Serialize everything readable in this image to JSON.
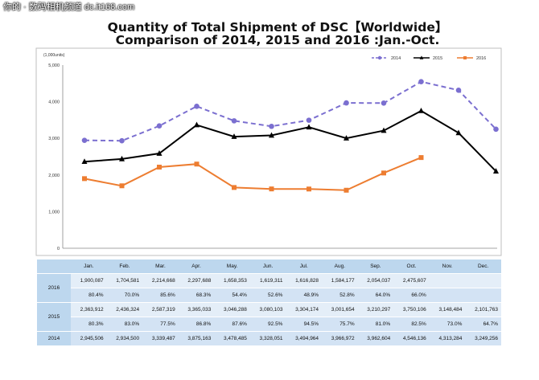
{
  "watermark": "你的 · 数码相机频道 dc.it168.com",
  "title_line1": "Quantity of Total Shipment of DSC【Worldwide】",
  "title_line2": "Comparison of 2014, 2015 and 2016 :Jan.-Oct.",
  "chart_data": {
    "type": "line",
    "ylabel": "(1,000units)",
    "ylim": [
      0,
      5000
    ],
    "yticks": [
      "0",
      "1,000",
      "2,000",
      "3,000",
      "4,000",
      "5,000"
    ],
    "categories": [
      "Jan.",
      "Feb.",
      "Mar.",
      "Apr.",
      "May.",
      "Jun.",
      "Jul.",
      "Aug.",
      "Sep.",
      "Oct.",
      "Nov.",
      "Dec."
    ],
    "legend_position": "top-right",
    "grid": false,
    "series": [
      {
        "name": "2014",
        "color": "#7b6fd0",
        "marker": "circle",
        "dash": "dashed",
        "values": [
          2945.506,
          2934.5,
          3339.487,
          3875.163,
          3478.485,
          3328.051,
          3494.964,
          3966.972,
          3962.604,
          4546.136,
          4313.284,
          3249.256
        ]
      },
      {
        "name": "2015",
        "color": "#000000",
        "marker": "triangle",
        "dash": "solid",
        "values": [
          2363.912,
          2436.324,
          2587.319,
          3365.033,
          3046.288,
          3080.103,
          3304.174,
          3001.654,
          3210.297,
          3750.106,
          3148.484,
          2101.763
        ]
      },
      {
        "name": "2016",
        "color": "#ed7d31",
        "marker": "square",
        "dash": "solid",
        "values": [
          1900.087,
          1704.581,
          2214.668,
          2297.688,
          1658.353,
          1619.311,
          1616.828,
          1584.177,
          2054.037,
          2475.607,
          null,
          null
        ]
      }
    ]
  },
  "table": {
    "header": [
      "",
      "Jan.",
      "Feb.",
      "Mar.",
      "Apr.",
      "May.",
      "Jun.",
      "Jul.",
      "Aug.",
      "Sep.",
      "Oct.",
      "Nov.",
      "Dec."
    ],
    "rows": [
      {
        "year": "2016",
        "values": [
          "1,900,087",
          "1,704,581",
          "2,214,668",
          "2,297,688",
          "1,658,353",
          "1,619,311",
          "1,616,828",
          "1,584,177",
          "2,054,037",
          "2,475,607",
          "",
          ""
        ],
        "ratios": [
          "80.4%",
          "70.0%",
          "85.6%",
          "68.3%",
          "54.4%",
          "52.6%",
          "48.9%",
          "52.8%",
          "64.0%",
          "66.0%",
          "",
          ""
        ]
      },
      {
        "year": "2015",
        "values": [
          "2,363,912",
          "2,436,324",
          "2,587,319",
          "3,365,033",
          "3,046,288",
          "3,080,103",
          "3,304,174",
          "3,001,654",
          "3,210,297",
          "3,750,106",
          "3,148,484",
          "2,101,763"
        ],
        "ratios": [
          "80.3%",
          "83.0%",
          "77.5%",
          "86.8%",
          "87.6%",
          "92.5%",
          "94.5%",
          "75.7%",
          "81.0%",
          "82.5%",
          "73.0%",
          "64.7%"
        ]
      },
      {
        "year": "2014",
        "values": [
          "2,945,506",
          "2,934,500",
          "3,339,487",
          "3,875,163",
          "3,478,485",
          "3,328,051",
          "3,494,964",
          "3,966,972",
          "3,962,604",
          "4,546,136",
          "4,313,284",
          "3,249,256"
        ]
      }
    ]
  }
}
